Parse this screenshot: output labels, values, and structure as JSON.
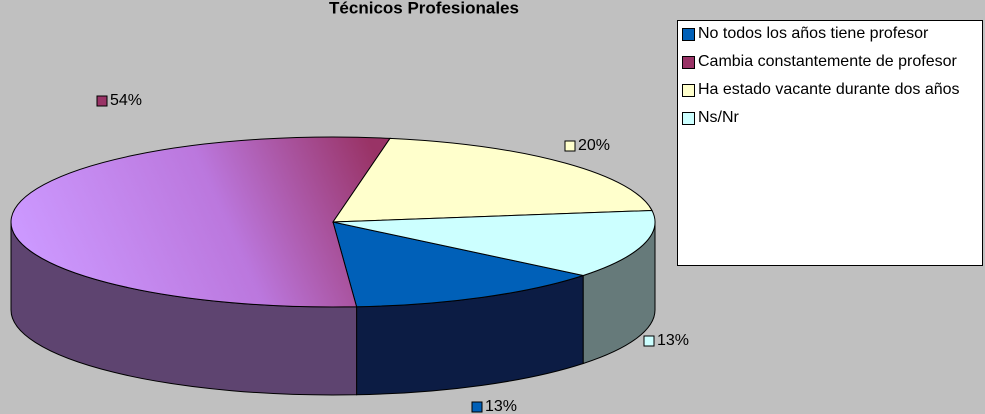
{
  "chart_data": {
    "type": "pie",
    "title": "Técnicos Profesionales",
    "categories": [
      "No todos los años tiene profesor",
      "Cambia constantemente de profesor",
      "Ha estado vacante durante dos años",
      "Ns/Nr"
    ],
    "values": [
      13,
      54,
      20,
      13
    ],
    "value_labels": [
      "13%",
      "54%",
      "20%",
      "13%"
    ],
    "colors": [
      "#0060b8",
      "#993366",
      "#ffffcc",
      "#ccffff"
    ],
    "legend": "right"
  }
}
